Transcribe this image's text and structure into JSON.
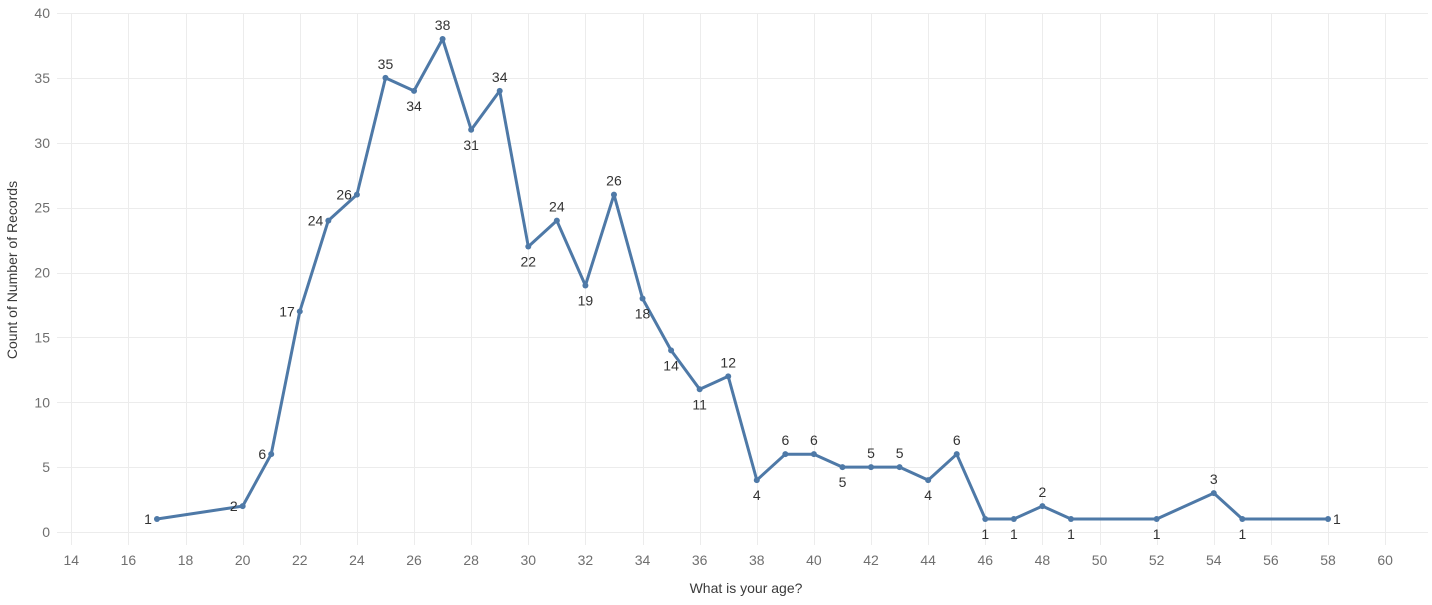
{
  "chart_data": {
    "type": "line",
    "title": "",
    "xlabel": "What is your age?",
    "ylabel": "Count of Number of Records",
    "xlim": [
      13.5,
      61.5
    ],
    "ylim": [
      -1,
      40
    ],
    "x_ticks": [
      14,
      16,
      18,
      20,
      22,
      24,
      26,
      28,
      30,
      32,
      34,
      36,
      38,
      40,
      42,
      44,
      46,
      48,
      50,
      52,
      54,
      56,
      58,
      60
    ],
    "y_ticks": [
      0,
      5,
      10,
      15,
      20,
      25,
      30,
      35,
      40
    ],
    "grid": true,
    "legend": "none",
    "colors": {
      "series": "#4e79a7"
    },
    "series": [
      {
        "points": [
          {
            "x": 17,
            "y": 1,
            "label": "1"
          },
          {
            "x": 20,
            "y": 2,
            "label": "2"
          },
          {
            "x": 21,
            "y": 6,
            "label": "6"
          },
          {
            "x": 22,
            "y": 17,
            "label": "17"
          },
          {
            "x": 23,
            "y": 24,
            "label": "24"
          },
          {
            "x": 24,
            "y": 26,
            "label": "26"
          },
          {
            "x": 25,
            "y": 35,
            "label": "35"
          },
          {
            "x": 26,
            "y": 34,
            "label": "34"
          },
          {
            "x": 27,
            "y": 38,
            "label": "38"
          },
          {
            "x": 28,
            "y": 31,
            "label": "31"
          },
          {
            "x": 29,
            "y": 34,
            "label": "34"
          },
          {
            "x": 30,
            "y": 22,
            "label": "22"
          },
          {
            "x": 31,
            "y": 24,
            "label": "24"
          },
          {
            "x": 32,
            "y": 19,
            "label": "19"
          },
          {
            "x": 33,
            "y": 26,
            "label": "26"
          },
          {
            "x": 34,
            "y": 18,
            "label": "18"
          },
          {
            "x": 35,
            "y": 14,
            "label": "14"
          },
          {
            "x": 36,
            "y": 11,
            "label": "11"
          },
          {
            "x": 37,
            "y": 12,
            "label": "12"
          },
          {
            "x": 38,
            "y": 4,
            "label": "4"
          },
          {
            "x": 39,
            "y": 6,
            "label": "6"
          },
          {
            "x": 40,
            "y": 6,
            "label": "6"
          },
          {
            "x": 41,
            "y": 5,
            "label": "5"
          },
          {
            "x": 42,
            "y": 5,
            "label": "5"
          },
          {
            "x": 43,
            "y": 5,
            "label": "5"
          },
          {
            "x": 44,
            "y": 4,
            "label": "4"
          },
          {
            "x": 45,
            "y": 6,
            "label": "6"
          },
          {
            "x": 46,
            "y": 1,
            "label": "1"
          },
          {
            "x": 47,
            "y": 1,
            "label": "1"
          },
          {
            "x": 48,
            "y": 2,
            "label": "2"
          },
          {
            "x": 49,
            "y": 1,
            "label": "1"
          },
          {
            "x": 52,
            "y": 1,
            "label": "1"
          },
          {
            "x": 54,
            "y": 3,
            "label": "3"
          },
          {
            "x": 55,
            "y": 1,
            "label": "1"
          },
          {
            "x": 58,
            "y": 1,
            "label": "1"
          }
        ]
      }
    ]
  }
}
